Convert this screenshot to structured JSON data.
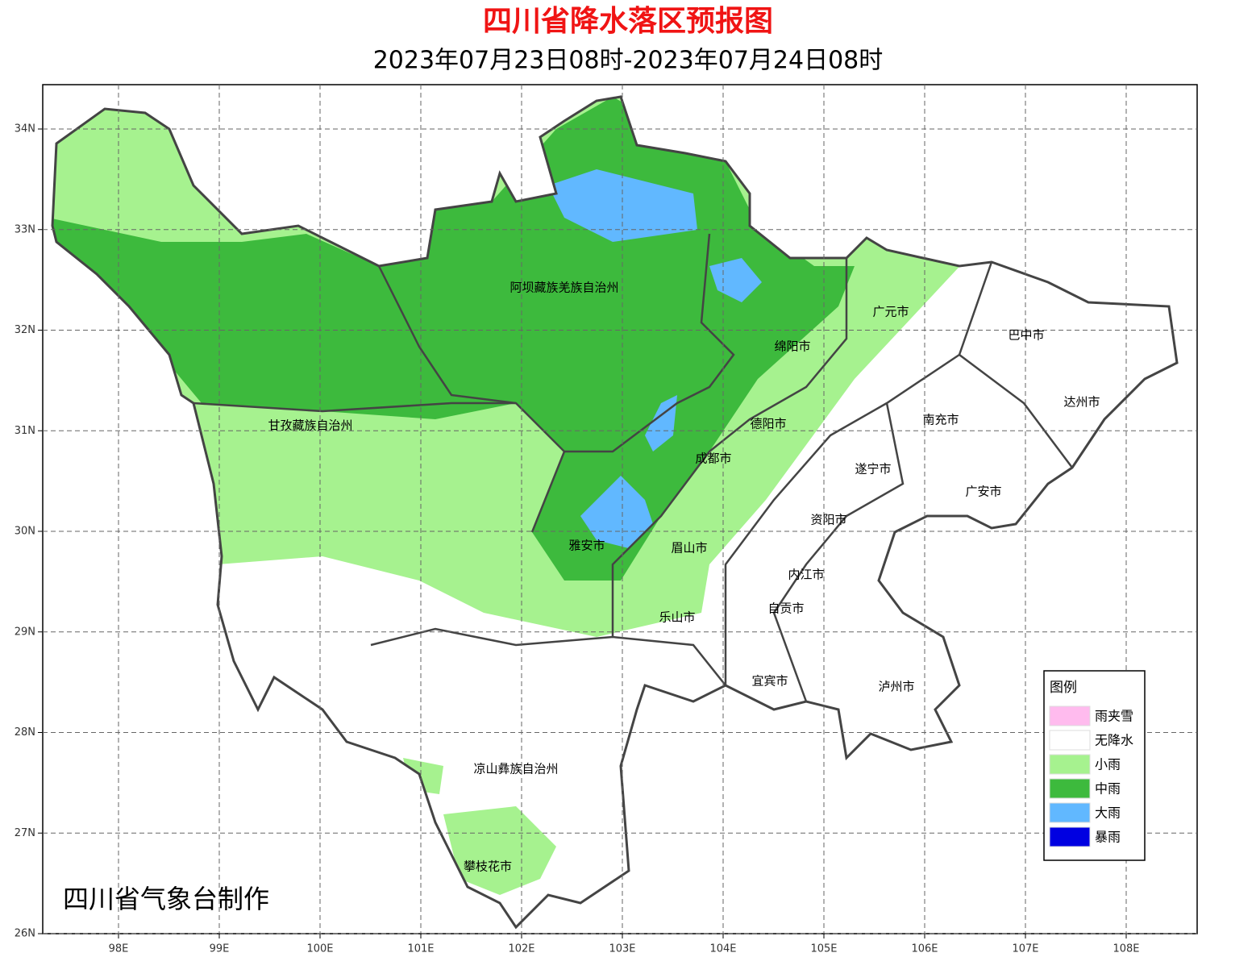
{
  "header": {
    "title": "四川省降水落区预报图",
    "subtitle": "2023年07月23日08时-2023年07月24日08时"
  },
  "map": {
    "lon_labels": [
      "98E",
      "99E",
      "100E",
      "101E",
      "102E",
      "103E",
      "104E",
      "105E",
      "106E",
      "107E",
      "108E"
    ],
    "lat_labels": [
      "34N",
      "33N",
      "32N",
      "31N",
      "30N",
      "29N",
      "28N",
      "27N",
      "26N"
    ],
    "places": [
      "阿坝藏族羌族自治州",
      "甘孜藏族自治州",
      "凉山彝族自治州",
      "广元市",
      "巴中市",
      "绵阳市",
      "达州市",
      "南充市",
      "德阳市",
      "成都市",
      "遂宁市",
      "广安市",
      "资阳市",
      "雅安市",
      "眉山市",
      "内江市",
      "自贡市",
      "乐山市",
      "宜宾市",
      "泸州市",
      "攀枝花市"
    ],
    "credit": "四川省气象台制作"
  },
  "legend": {
    "title": "图例",
    "items": [
      {
        "label": "雨夹雪",
        "color": "#ffbbee"
      },
      {
        "label": "无降水",
        "color": "#ffffff"
      },
      {
        "label": "小雨",
        "color": "#a6f28f"
      },
      {
        "label": "中雨",
        "color": "#3dba3d"
      },
      {
        "label": "大雨",
        "color": "#61b8ff"
      },
      {
        "label": "暴雨",
        "color": "#0000e1"
      }
    ]
  }
}
